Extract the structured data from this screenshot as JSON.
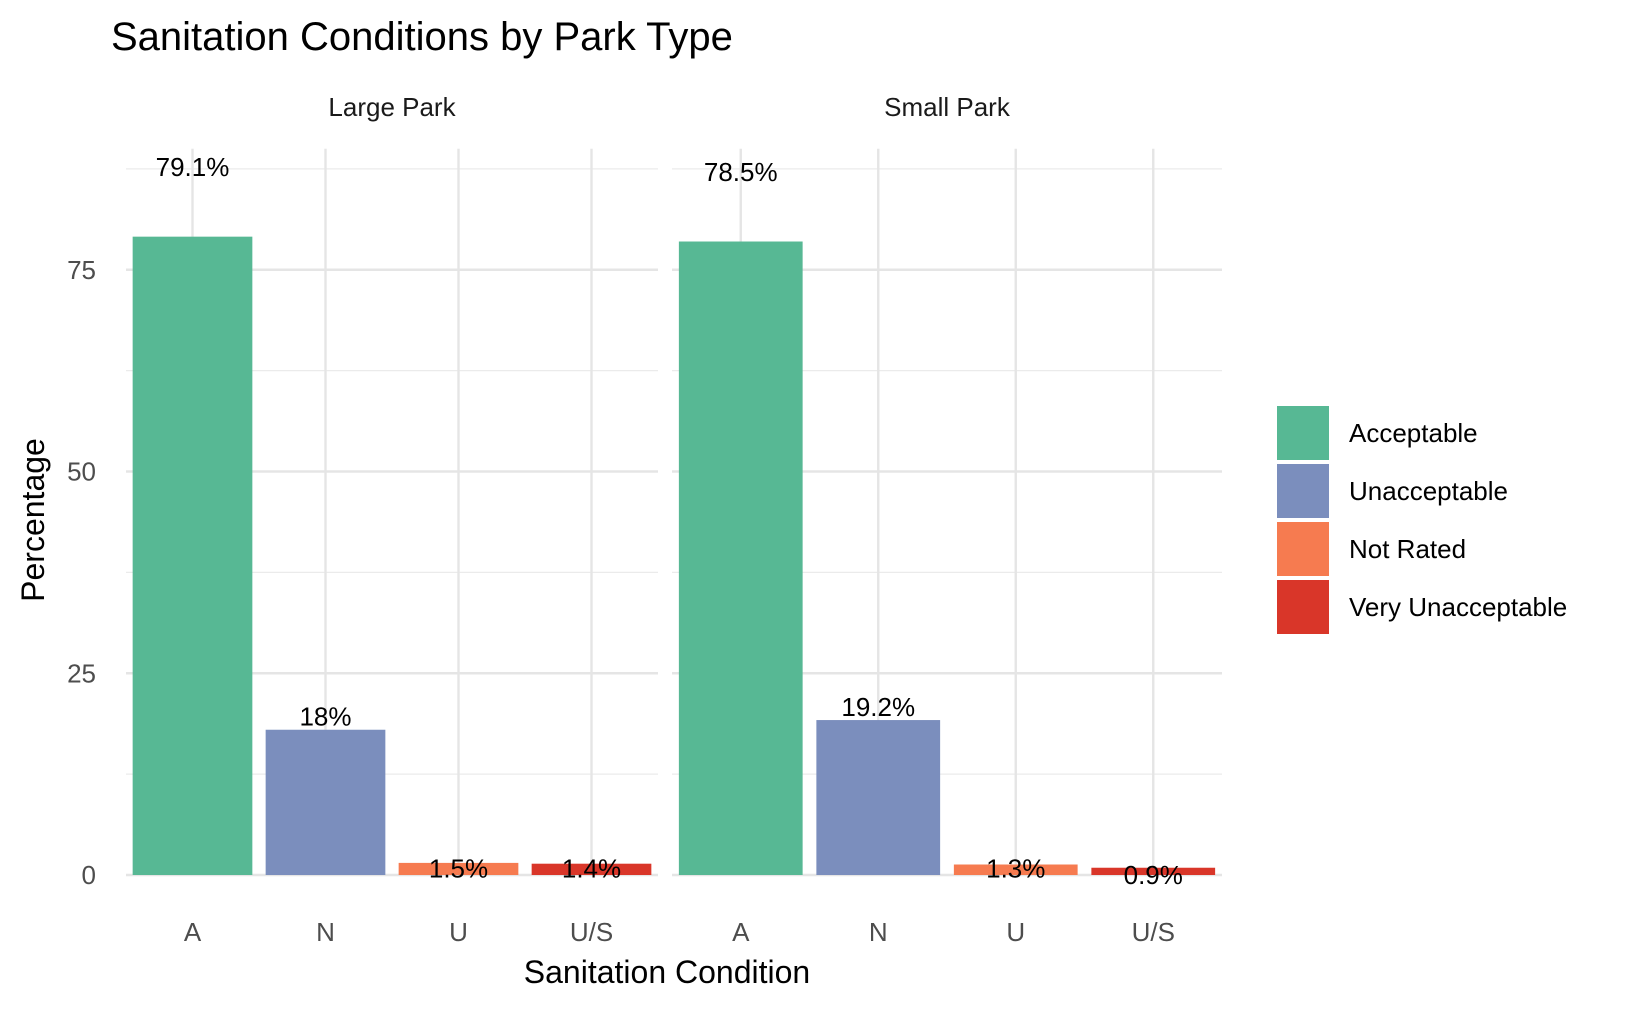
{
  "chart_data": {
    "type": "bar",
    "title": "Sanitation Conditions by Park Type",
    "xlabel": "Sanitation Condition",
    "ylabel": "Percentage",
    "ylim": [
      0,
      90
    ],
    "y_ticks": [
      0,
      25,
      50,
      75
    ],
    "grid": true,
    "legend_position": "right",
    "categories": [
      "A",
      "N",
      "U",
      "U/S"
    ],
    "facets": [
      {
        "name": "Large Park",
        "values": [
          79.1,
          18.0,
          1.5,
          1.4
        ],
        "labels": [
          "79.1%",
          "18%",
          "1.5%",
          "1.4%"
        ]
      },
      {
        "name": "Small Park",
        "values": [
          78.5,
          19.2,
          1.3,
          0.9
        ],
        "labels": [
          "78.5%",
          "19.2%",
          "1.3%",
          "0.9%"
        ]
      }
    ],
    "legend": [
      {
        "label": "Acceptable",
        "color": "#57b894"
      },
      {
        "label": "Unacceptable",
        "color": "#7b8ebd"
      },
      {
        "label": "Not Rated",
        "color": "#f67b50"
      },
      {
        "label": "Very Unacceptable",
        "color": "#d93629"
      }
    ],
    "category_colors": [
      "#57b894",
      "#7b8ebd",
      "#f67b50",
      "#d93629"
    ]
  }
}
